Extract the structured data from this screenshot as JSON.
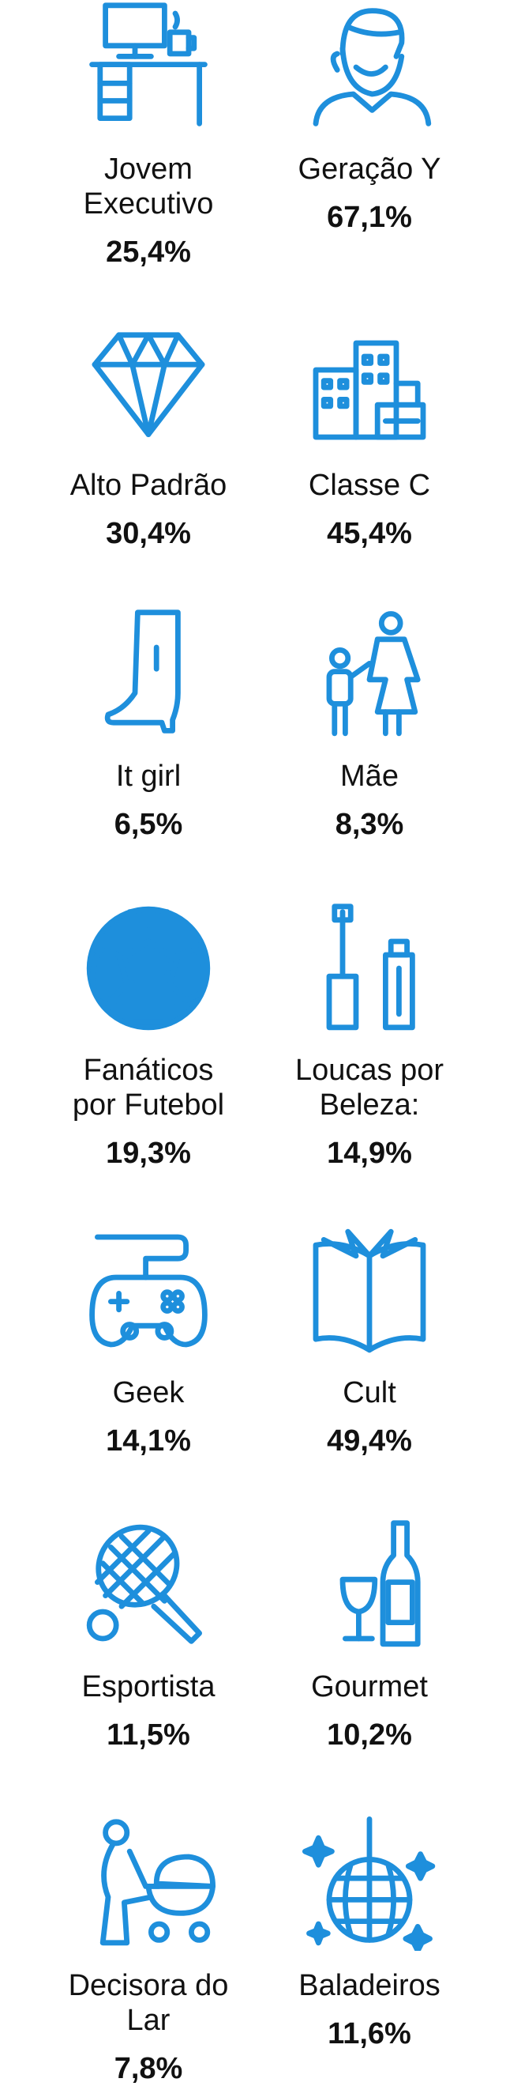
{
  "items": [
    {
      "lines": [
        "Jovem",
        "Executivo"
      ],
      "value": "25,4%"
    },
    {
      "lines": [
        "Geração Y"
      ],
      "value": "67,1%"
    },
    {
      "lines": [
        "Alto Padrão"
      ],
      "value": "30,4%"
    },
    {
      "lines": [
        "Classe C"
      ],
      "value": "45,4%"
    },
    {
      "lines": [
        "It girl"
      ],
      "value": "6,5%"
    },
    {
      "lines": [
        "Mãe"
      ],
      "value": "8,3%"
    },
    {
      "lines": [
        "Fanáticos",
        "por Futebol"
      ],
      "value": "19,3%"
    },
    {
      "lines": [
        "Loucas por",
        "Beleza:"
      ],
      "value": "14,9%"
    },
    {
      "lines": [
        "Geek"
      ],
      "value": "14,1%"
    },
    {
      "lines": [
        "Cult"
      ],
      "value": "49,4%"
    },
    {
      "lines": [
        "Esportista"
      ],
      "value": "11,5%"
    },
    {
      "lines": [
        "Gourmet"
      ],
      "value": "10,2%"
    },
    {
      "lines": [
        "Decisora do",
        "Lar"
      ],
      "value": "7,8%"
    },
    {
      "lines": [
        "Baladeiros"
      ],
      "value": "11,6%"
    }
  ]
}
